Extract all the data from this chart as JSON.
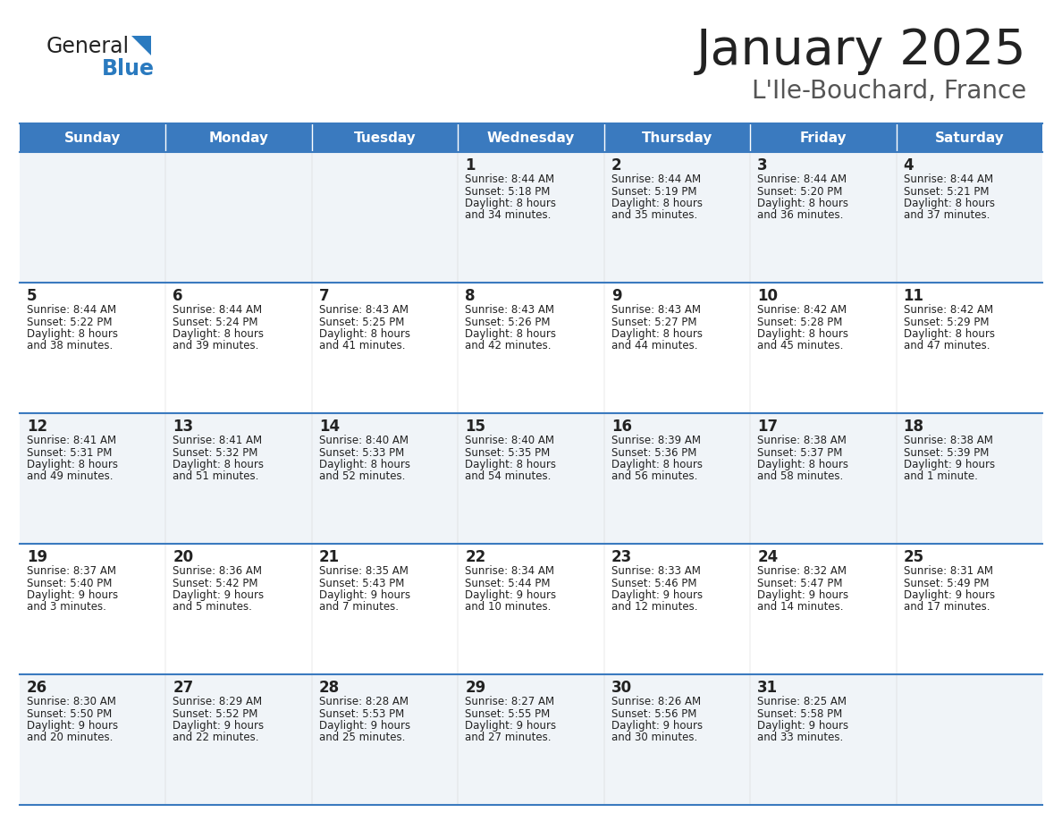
{
  "title": "January 2025",
  "subtitle": "L'Ile-Bouchard, France",
  "days_of_week": [
    "Sunday",
    "Monday",
    "Tuesday",
    "Wednesday",
    "Thursday",
    "Friday",
    "Saturday"
  ],
  "header_bg": "#3a7abf",
  "header_text": "#ffffff",
  "row_bg_odd": "#f0f4f8",
  "row_bg_even": "#ffffff",
  "cell_text_color": "#222222",
  "day_num_color": "#222222",
  "border_color": "#3a7abf",
  "title_color": "#222222",
  "subtitle_color": "#555555",
  "general_color": "#222222",
  "blue_color": "#2a7abf",
  "calendar": [
    [
      {
        "day": "",
        "sunrise": "",
        "sunset": "",
        "daylight": ""
      },
      {
        "day": "",
        "sunrise": "",
        "sunset": "",
        "daylight": ""
      },
      {
        "day": "",
        "sunrise": "",
        "sunset": "",
        "daylight": ""
      },
      {
        "day": "1",
        "sunrise": "8:44 AM",
        "sunset": "5:18 PM",
        "daylight_1": "8 hours",
        "daylight_2": "and 34 minutes."
      },
      {
        "day": "2",
        "sunrise": "8:44 AM",
        "sunset": "5:19 PM",
        "daylight_1": "8 hours",
        "daylight_2": "and 35 minutes."
      },
      {
        "day": "3",
        "sunrise": "8:44 AM",
        "sunset": "5:20 PM",
        "daylight_1": "8 hours",
        "daylight_2": "and 36 minutes."
      },
      {
        "day": "4",
        "sunrise": "8:44 AM",
        "sunset": "5:21 PM",
        "daylight_1": "8 hours",
        "daylight_2": "and 37 minutes."
      }
    ],
    [
      {
        "day": "5",
        "sunrise": "8:44 AM",
        "sunset": "5:22 PM",
        "daylight_1": "8 hours",
        "daylight_2": "and 38 minutes."
      },
      {
        "day": "6",
        "sunrise": "8:44 AM",
        "sunset": "5:24 PM",
        "daylight_1": "8 hours",
        "daylight_2": "and 39 minutes."
      },
      {
        "day": "7",
        "sunrise": "8:43 AM",
        "sunset": "5:25 PM",
        "daylight_1": "8 hours",
        "daylight_2": "and 41 minutes."
      },
      {
        "day": "8",
        "sunrise": "8:43 AM",
        "sunset": "5:26 PM",
        "daylight_1": "8 hours",
        "daylight_2": "and 42 minutes."
      },
      {
        "day": "9",
        "sunrise": "8:43 AM",
        "sunset": "5:27 PM",
        "daylight_1": "8 hours",
        "daylight_2": "and 44 minutes."
      },
      {
        "day": "10",
        "sunrise": "8:42 AM",
        "sunset": "5:28 PM",
        "daylight_1": "8 hours",
        "daylight_2": "and 45 minutes."
      },
      {
        "day": "11",
        "sunrise": "8:42 AM",
        "sunset": "5:29 PM",
        "daylight_1": "8 hours",
        "daylight_2": "and 47 minutes."
      }
    ],
    [
      {
        "day": "12",
        "sunrise": "8:41 AM",
        "sunset": "5:31 PM",
        "daylight_1": "8 hours",
        "daylight_2": "and 49 minutes."
      },
      {
        "day": "13",
        "sunrise": "8:41 AM",
        "sunset": "5:32 PM",
        "daylight_1": "8 hours",
        "daylight_2": "and 51 minutes."
      },
      {
        "day": "14",
        "sunrise": "8:40 AM",
        "sunset": "5:33 PM",
        "daylight_1": "8 hours",
        "daylight_2": "and 52 minutes."
      },
      {
        "day": "15",
        "sunrise": "8:40 AM",
        "sunset": "5:35 PM",
        "daylight_1": "8 hours",
        "daylight_2": "and 54 minutes."
      },
      {
        "day": "16",
        "sunrise": "8:39 AM",
        "sunset": "5:36 PM",
        "daylight_1": "8 hours",
        "daylight_2": "and 56 minutes."
      },
      {
        "day": "17",
        "sunrise": "8:38 AM",
        "sunset": "5:37 PM",
        "daylight_1": "8 hours",
        "daylight_2": "and 58 minutes."
      },
      {
        "day": "18",
        "sunrise": "8:38 AM",
        "sunset": "5:39 PM",
        "daylight_1": "9 hours",
        "daylight_2": "and 1 minute."
      }
    ],
    [
      {
        "day": "19",
        "sunrise": "8:37 AM",
        "sunset": "5:40 PM",
        "daylight_1": "9 hours",
        "daylight_2": "and 3 minutes."
      },
      {
        "day": "20",
        "sunrise": "8:36 AM",
        "sunset": "5:42 PM",
        "daylight_1": "9 hours",
        "daylight_2": "and 5 minutes."
      },
      {
        "day": "21",
        "sunrise": "8:35 AM",
        "sunset": "5:43 PM",
        "daylight_1": "9 hours",
        "daylight_2": "and 7 minutes."
      },
      {
        "day": "22",
        "sunrise": "8:34 AM",
        "sunset": "5:44 PM",
        "daylight_1": "9 hours",
        "daylight_2": "and 10 minutes."
      },
      {
        "day": "23",
        "sunrise": "8:33 AM",
        "sunset": "5:46 PM",
        "daylight_1": "9 hours",
        "daylight_2": "and 12 minutes."
      },
      {
        "day": "24",
        "sunrise": "8:32 AM",
        "sunset": "5:47 PM",
        "daylight_1": "9 hours",
        "daylight_2": "and 14 minutes."
      },
      {
        "day": "25",
        "sunrise": "8:31 AM",
        "sunset": "5:49 PM",
        "daylight_1": "9 hours",
        "daylight_2": "and 17 minutes."
      }
    ],
    [
      {
        "day": "26",
        "sunrise": "8:30 AM",
        "sunset": "5:50 PM",
        "daylight_1": "9 hours",
        "daylight_2": "and 20 minutes."
      },
      {
        "day": "27",
        "sunrise": "8:29 AM",
        "sunset": "5:52 PM",
        "daylight_1": "9 hours",
        "daylight_2": "and 22 minutes."
      },
      {
        "day": "28",
        "sunrise": "8:28 AM",
        "sunset": "5:53 PM",
        "daylight_1": "9 hours",
        "daylight_2": "and 25 minutes."
      },
      {
        "day": "29",
        "sunrise": "8:27 AM",
        "sunset": "5:55 PM",
        "daylight_1": "9 hours",
        "daylight_2": "and 27 minutes."
      },
      {
        "day": "30",
        "sunrise": "8:26 AM",
        "sunset": "5:56 PM",
        "daylight_1": "9 hours",
        "daylight_2": "and 30 minutes."
      },
      {
        "day": "31",
        "sunrise": "8:25 AM",
        "sunset": "5:58 PM",
        "daylight_1": "9 hours",
        "daylight_2": "and 33 minutes."
      },
      {
        "day": "",
        "sunrise": "",
        "sunset": "",
        "daylight_1": "",
        "daylight_2": ""
      }
    ]
  ]
}
